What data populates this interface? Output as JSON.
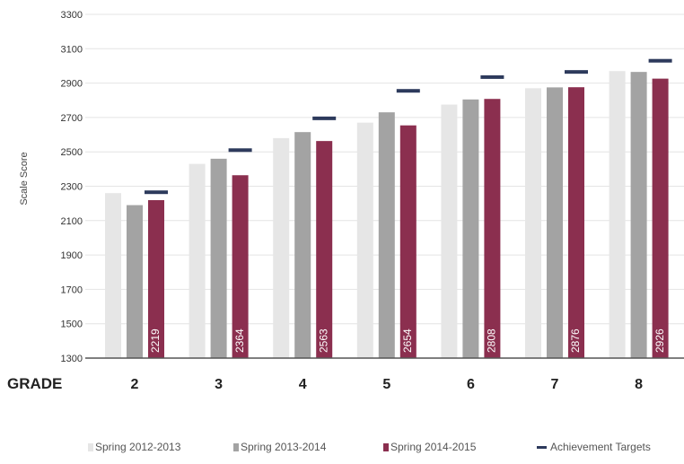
{
  "chart_data": {
    "type": "bar",
    "ylabel": "Scale Score",
    "xlabel": "GRADE",
    "ylim": [
      1300,
      3300
    ],
    "yticks": [
      "1300",
      "1500",
      "1700",
      "1900",
      "2100",
      "2300",
      "2500",
      "2700",
      "2900",
      "3100",
      "3300"
    ],
    "grid": true,
    "legend_position": "bottom",
    "categories": [
      "2",
      "3",
      "4",
      "5",
      "6",
      "7",
      "8"
    ],
    "series": [
      {
        "name": "Spring 2012-2013",
        "color": "#e6e6e6",
        "values": [
          2260,
          2430,
          2580,
          2670,
          2775,
          2870,
          2970
        ]
      },
      {
        "name": "Spring 2013-2014",
        "color": "#a3a3a3",
        "values": [
          2190,
          2460,
          2615,
          2730,
          2805,
          2875,
          2965
        ]
      },
      {
        "name": "Spring 2014-2015",
        "color": "#8b2f4f",
        "values": [
          2219,
          2364,
          2563,
          2654,
          2808,
          2876,
          2926
        ],
        "labels": [
          "2219",
          "2364",
          "2563",
          "2654",
          "2808",
          "2876",
          "2926"
        ]
      }
    ],
    "targets": {
      "name": "Achievement Targets",
      "color": "#2d3a5c",
      "values": [
        2265,
        2510,
        2695,
        2855,
        2935,
        2965,
        3030
      ]
    }
  }
}
